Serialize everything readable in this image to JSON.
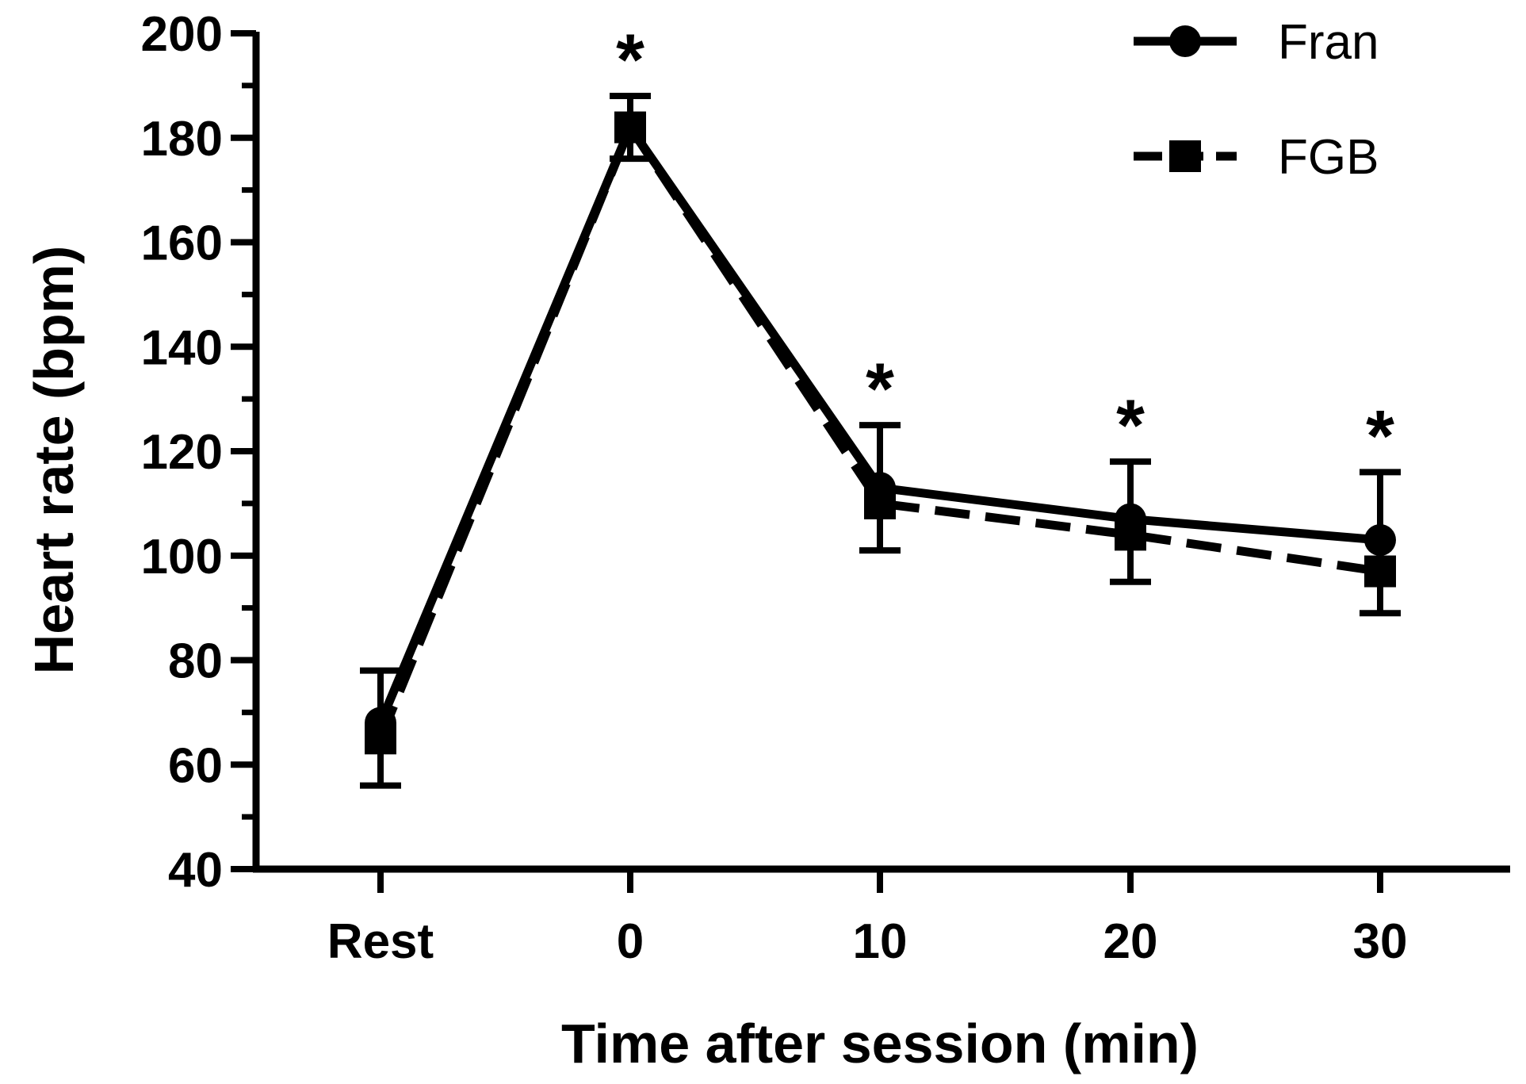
{
  "chart_data": {
    "type": "line",
    "title": "",
    "xlabel": "Time after session (min)",
    "ylabel": "Heart rate (bpm)",
    "ylim": [
      40,
      200
    ],
    "yticks": [
      40,
      60,
      80,
      100,
      120,
      140,
      160,
      180,
      200
    ],
    "categories": [
      "Rest",
      "0",
      "10",
      "20",
      "30"
    ],
    "series": [
      {
        "name": "Fran",
        "marker": "circle",
        "line_style": "solid",
        "values": [
          68,
          182,
          113,
          107,
          103
        ],
        "error": [
          10,
          6,
          12,
          11,
          13
        ]
      },
      {
        "name": "FGB",
        "marker": "square",
        "line_style": "dashed",
        "values": [
          65,
          182,
          110,
          104,
          97
        ],
        "error": [
          9,
          6,
          9,
          9,
          8
        ]
      }
    ],
    "annotations": [
      {
        "category": "0",
        "text": "*"
      },
      {
        "category": "10",
        "text": "*"
      },
      {
        "category": "20",
        "text": "*"
      },
      {
        "category": "30",
        "text": "*"
      }
    ],
    "legend": {
      "position": "top-right",
      "entries": [
        "Fran",
        "FGB"
      ]
    },
    "grid": false,
    "colors": {
      "line": "#000000",
      "background": "#ffffff"
    }
  }
}
